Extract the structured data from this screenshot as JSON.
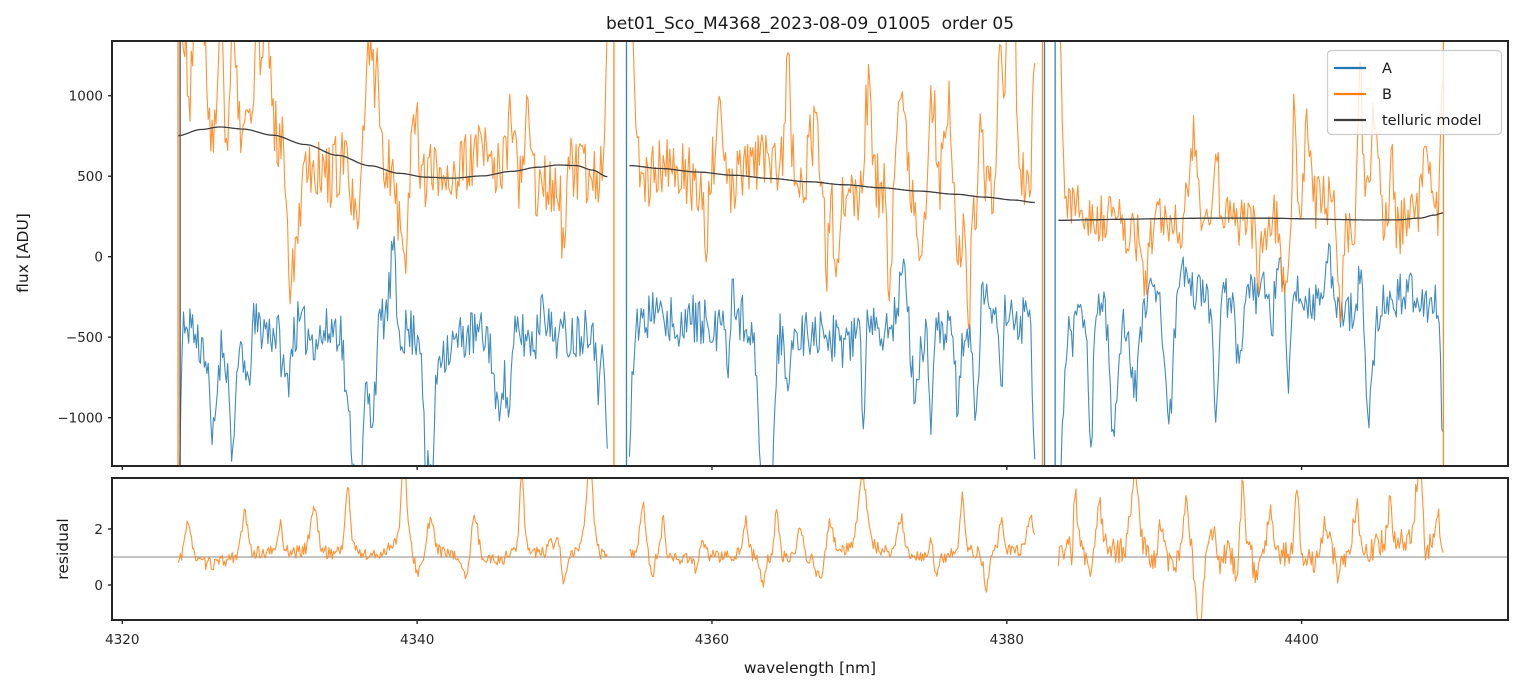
{
  "chart_data": {
    "type": "line",
    "title": "bet01_Sco_M4368_2023-08-09_01005  order 05",
    "xlabel": "wavelength [nm]",
    "xlim": [
      4319.3,
      4414.0
    ],
    "x_ticks": [
      {
        "v": 4320,
        "label": "4320"
      },
      {
        "v": 4340,
        "label": "4340"
      },
      {
        "v": 4360,
        "label": "4360"
      },
      {
        "v": 4380,
        "label": "4380"
      },
      {
        "v": 4400,
        "label": "4400"
      }
    ],
    "colors": {
      "A": "#1f77b4",
      "B": "#ff7f0e",
      "telluric": "#3d3d3d",
      "spine": "#262626",
      "hline": "#888888",
      "legend_border": "#cccccc"
    },
    "legend": [
      {
        "label": "A",
        "color_key": "A"
      },
      {
        "label": "B",
        "color_key": "B"
      },
      {
        "label": "telluric model",
        "color_key": "telluric"
      }
    ],
    "top_panel": {
      "ylabel": "flux [ADU]",
      "ylim": [
        -1300,
        1340
      ],
      "y_ticks": [
        {
          "v": 1000,
          "label": "1000"
        },
        {
          "v": 500,
          "label": "500"
        },
        {
          "v": 0,
          "label": "0"
        },
        {
          "v": -500,
          "label": "−500"
        },
        {
          "v": -1000,
          "label": "−1000"
        }
      ]
    },
    "bottom_panel": {
      "ylabel": "residual",
      "ylim": [
        -1.25,
        3.82
      ],
      "y_ticks": [
        {
          "v": 2,
          "label": "2"
        },
        {
          "v": 0,
          "label": "0"
        }
      ],
      "hline": 1
    },
    "segments": [
      {
        "x0": 4323.8,
        "x1": 4352.9
      },
      {
        "x0": 4354.4,
        "x1": 4381.9
      },
      {
        "x0": 4383.5,
        "x1": 4409.6
      }
    ],
    "telluric_model": [
      [
        [
          4323.8,
          752
        ],
        [
          4325.3,
          790
        ],
        [
          4326.6,
          806
        ],
        [
          4328.2,
          793
        ],
        [
          4330.2,
          755
        ],
        [
          4332.4,
          697
        ],
        [
          4334.6,
          630
        ],
        [
          4336.8,
          565
        ],
        [
          4338.8,
          518
        ],
        [
          4340.6,
          494
        ],
        [
          4342.4,
          488
        ],
        [
          4344.4,
          502
        ],
        [
          4346.4,
          530
        ],
        [
          4348.2,
          556
        ],
        [
          4349.6,
          570
        ],
        [
          4350.8,
          566
        ],
        [
          4351.9,
          538
        ],
        [
          4352.9,
          497
        ]
      ],
      [
        [
          4354.4,
          566
        ],
        [
          4356.5,
          548
        ],
        [
          4359.0,
          526
        ],
        [
          4361.5,
          506
        ],
        [
          4364.0,
          486
        ],
        [
          4366.5,
          466
        ],
        [
          4369.0,
          447
        ],
        [
          4371.5,
          428
        ],
        [
          4374.0,
          408
        ],
        [
          4376.5,
          388
        ],
        [
          4378.5,
          370
        ],
        [
          4380.5,
          352
        ],
        [
          4381.9,
          337
        ]
      ],
      [
        [
          4383.5,
          226
        ],
        [
          4385.5,
          229
        ],
        [
          4388.0,
          233
        ],
        [
          4390.5,
          236
        ],
        [
          4393.0,
          239
        ],
        [
          4395.5,
          240
        ],
        [
          4398.0,
          239
        ],
        [
          4400.5,
          235
        ],
        [
          4402.5,
          231
        ],
        [
          4404.5,
          228
        ],
        [
          4406.5,
          229
        ],
        [
          4408.0,
          240
        ],
        [
          4409.0,
          258
        ],
        [
          4409.6,
          272
        ]
      ]
    ],
    "series": {
      "A": {
        "name": "A",
        "center": [
          -465,
          -435,
          -255
        ],
        "amp": [
          255,
          245,
          215
        ],
        "down_spikes": [
          13,
          11,
          11
        ],
        "up_spikes": [
          4,
          4,
          5
        ],
        "seed": 11
      },
      "B": {
        "name": "B",
        "amp": [
          340,
          330,
          270
        ],
        "up_spikes": [
          15,
          13,
          11
        ],
        "down_spikes": [
          9,
          8,
          7
        ],
        "seed": 22
      }
    },
    "vlines": [
      {
        "x": 4323.78,
        "color_key": "B"
      },
      {
        "x": 4323.92,
        "color_key": "telluric"
      },
      {
        "x": 4353.35,
        "color_key": "B"
      },
      {
        "x": 4354.2,
        "color_key": "A"
      },
      {
        "x": 4382.42,
        "color_key": "B"
      },
      {
        "x": 4382.56,
        "color_key": "A"
      },
      {
        "x": 4383.28,
        "color_key": "A"
      },
      {
        "x": 4409.62,
        "color_key": "B"
      }
    ],
    "residual": {
      "base": [
        0.95,
        0.95,
        0.9
      ],
      "jag": [
        0.17,
        0.17,
        0.34
      ],
      "seed": 33,
      "peaks": [
        [
          [
            4324.5,
            1.2
          ],
          [
            4328.3,
            1.35
          ],
          [
            4330.7,
            0.9
          ],
          [
            4333.0,
            1.5
          ],
          [
            4335.3,
            2.1
          ],
          [
            4339.1,
            3.0
          ],
          [
            4340.9,
            0.9
          ],
          [
            4343.9,
            1.35
          ],
          [
            4347.1,
            2.5
          ],
          [
            4349.4,
            1.2
          ],
          [
            4351.7,
            2.8
          ]
        ],
        [
          [
            4355.3,
            1.7
          ],
          [
            4356.7,
            1.2
          ],
          [
            4359.2,
            0.9
          ],
          [
            4362.3,
            1.1
          ],
          [
            4364.4,
            1.5
          ],
          [
            4366.0,
            1.0
          ],
          [
            4368.0,
            1.1
          ],
          [
            4370.2,
            2.4
          ],
          [
            4372.8,
            1.2
          ],
          [
            4374.9,
            0.9
          ],
          [
            4377.0,
            1.9
          ],
          [
            4379.6,
            1.0
          ],
          [
            4381.6,
            1.2
          ]
        ],
        [
          [
            4384.6,
            2.5
          ],
          [
            4386.3,
            1.5
          ],
          [
            4388.7,
            2.6
          ],
          [
            4390.5,
            1.3
          ],
          [
            4392.2,
            2.1
          ],
          [
            4394.1,
            1.5
          ],
          [
            4396.0,
            2.6
          ],
          [
            4397.9,
            1.4
          ],
          [
            4399.7,
            2.2
          ],
          [
            4401.6,
            1.3
          ],
          [
            4403.7,
            1.5
          ],
          [
            4406.0,
            2.1
          ],
          [
            4408.0,
            2.8
          ],
          [
            4409.2,
            1.5
          ]
        ]
      ],
      "down_spikes": [
        5,
        6,
        11
      ]
    }
  }
}
